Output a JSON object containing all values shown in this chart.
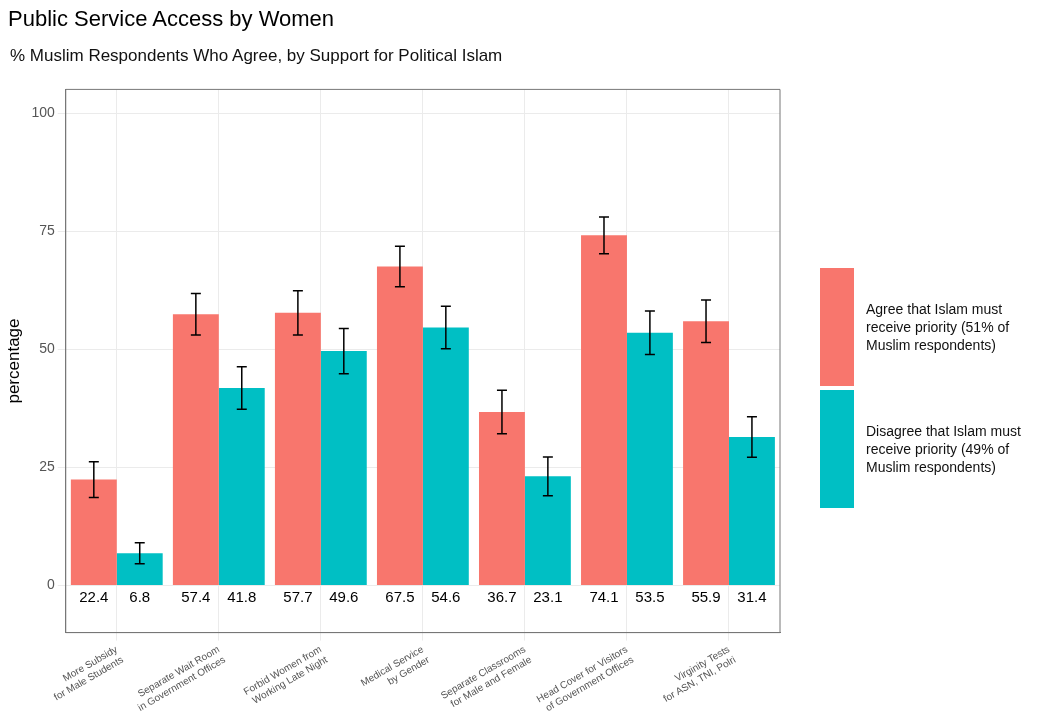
{
  "chart_data": {
    "type": "bar",
    "title": "Public Service Access by Women",
    "subtitle": "% Muslim Respondents Who Agree, by Support for Political Islam",
    "ylabel": "percentage",
    "categories": [
      "More Subsidy\nfor Male Students",
      "Separate Wait Room\nin Government Offices",
      "Forbid Women from\nWorking Late Night",
      "Medical Service\nby Gender",
      "Separate Classrooms\nfor Male and Female",
      "Head Cover for Visitors\nof Government Offices",
      "Virginity Tests\nfor ASN, TNI, Polri"
    ],
    "series": [
      {
        "name": "Agree that Islam must receive priority (51% of Muslim respondents)",
        "color": "#f8766d",
        "values": [
          22.4,
          57.4,
          57.7,
          67.5,
          36.7,
          74.1,
          55.9
        ],
        "errors": [
          3.8,
          4.4,
          4.7,
          4.3,
          4.6,
          3.9,
          4.5
        ]
      },
      {
        "name": "Disagree that Islam must receive priority (49% of Muslim respondents)",
        "color": "#00bfc4",
        "values": [
          6.8,
          41.8,
          49.6,
          54.6,
          23.1,
          53.5,
          31.4
        ],
        "errors": [
          2.2,
          4.5,
          4.8,
          4.5,
          4.1,
          4.6,
          4.3
        ]
      }
    ],
    "ylim": [
      -10,
      105
    ],
    "yticks": [
      0,
      25,
      50,
      75,
      100
    ],
    "grid": true,
    "legend": "right",
    "data_labels": true
  }
}
